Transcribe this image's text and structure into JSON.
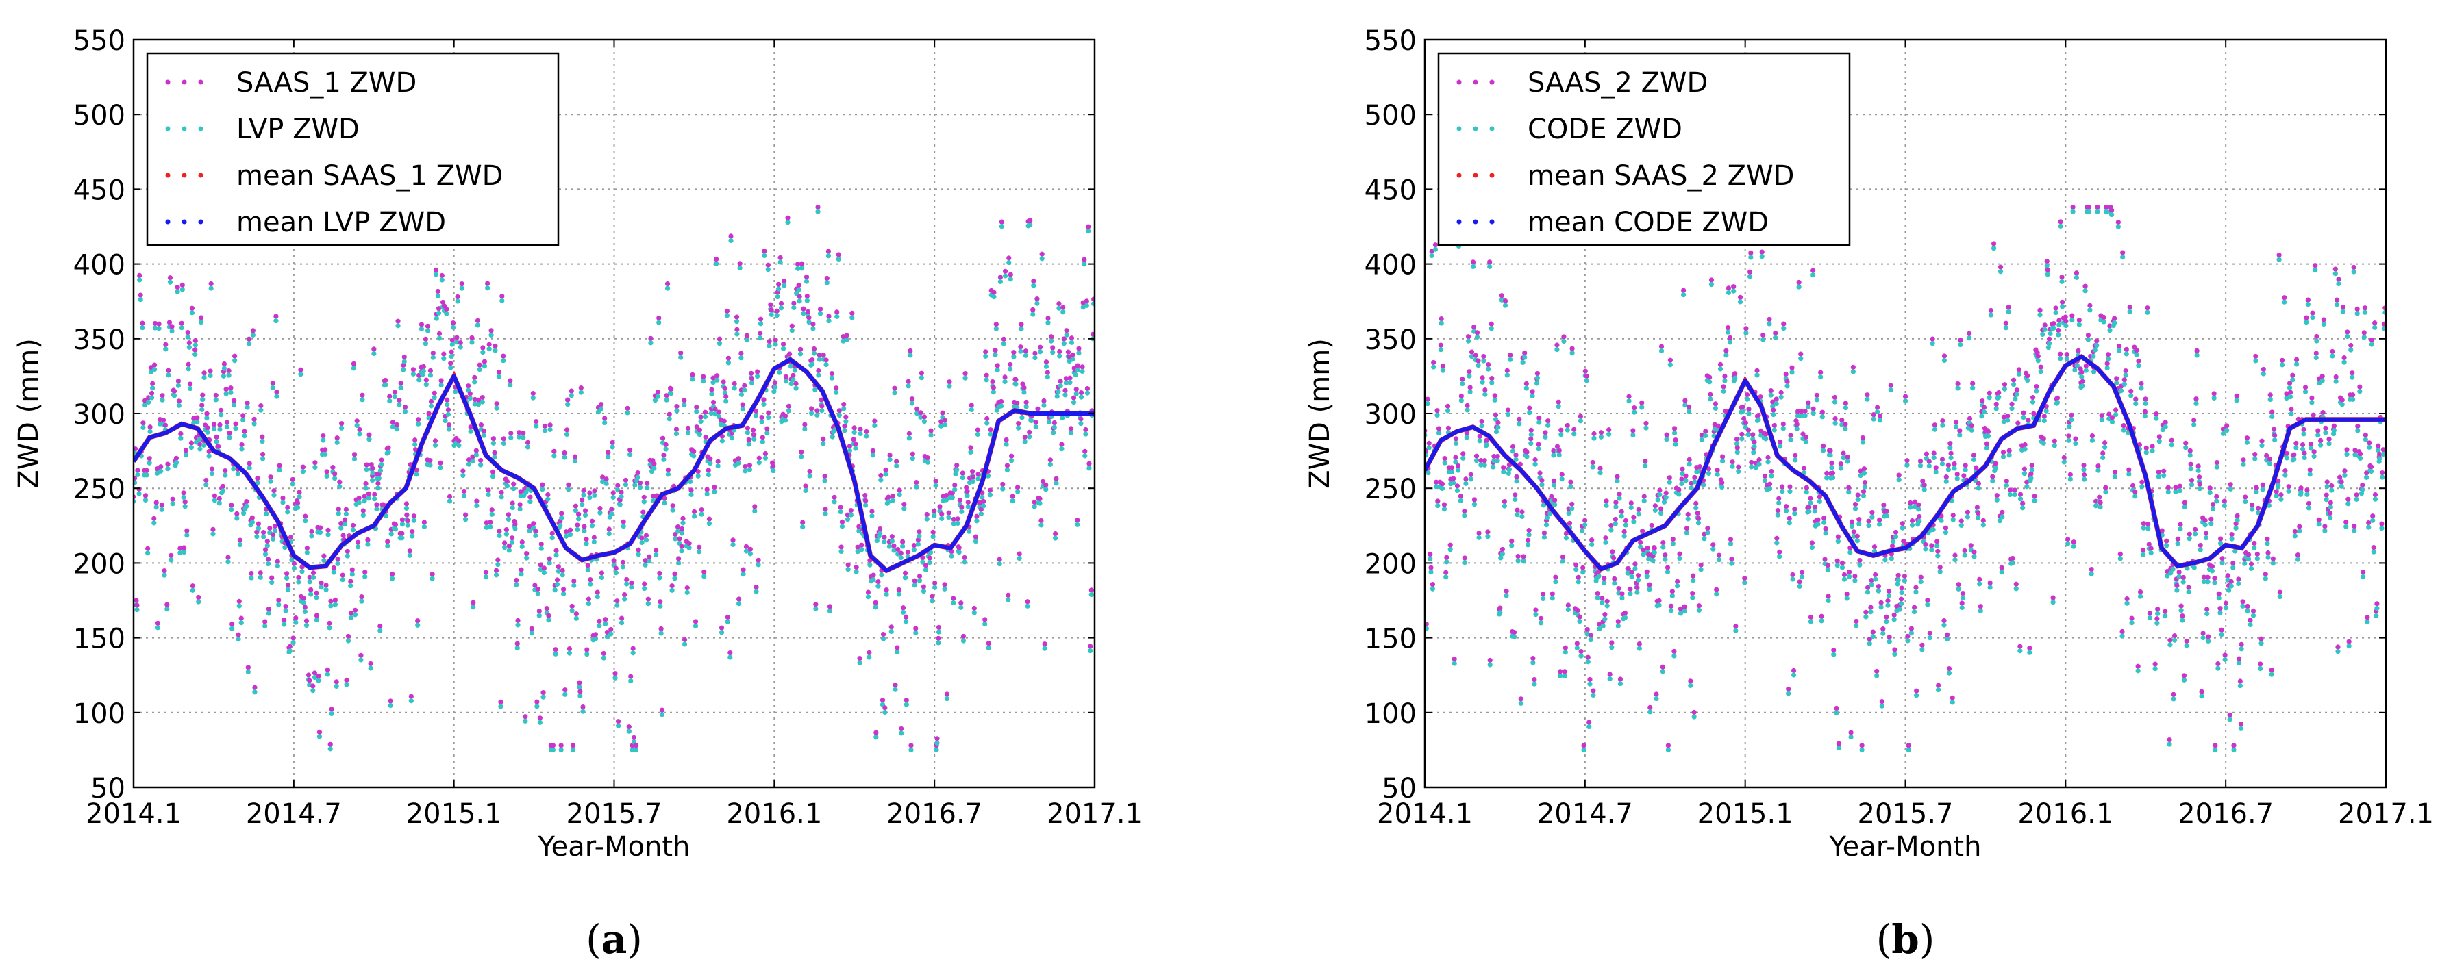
{
  "chart_data": [
    {
      "type": "scatter",
      "panel_label": "(a)",
      "xlabel": "Year-Month",
      "ylabel": "ZWD (mm)",
      "xlim": [
        2014.0,
        2017.0
      ],
      "ylim": [
        50,
        550
      ],
      "xticks": [
        {
          "v": 2014.0,
          "label": "2014.1"
        },
        {
          "v": 2014.5,
          "label": "2014.7"
        },
        {
          "v": 2015.0,
          "label": "2015.1"
        },
        {
          "v": 2015.5,
          "label": "2015.7"
        },
        {
          "v": 2016.0,
          "label": "2016.1"
        },
        {
          "v": 2016.5,
          "label": "2016.7"
        },
        {
          "v": 2017.0,
          "label": "2017.1"
        }
      ],
      "yticks": [
        50,
        100,
        150,
        200,
        250,
        300,
        350,
        400,
        450,
        500,
        550
      ],
      "grid": true,
      "legend_position": "top-left",
      "series": [
        {
          "name": "SAAS_1 ZWD",
          "color": "#cc33cc",
          "kind": "scatter",
          "offset": 3
        },
        {
          "name": "LVP ZWD",
          "color": "#33c4c4",
          "kind": "scatter",
          "offset": 0
        },
        {
          "name": "mean SAAS_1 ZWD",
          "color": "#ee2222",
          "kind": "mean",
          "offset": 0
        },
        {
          "name": "mean LVP ZWD",
          "color": "#1a1aee",
          "kind": "mean",
          "offset": 0
        }
      ],
      "mean_curve": {
        "x": [
          2014.0,
          2014.05,
          2014.1,
          2014.15,
          2014.2,
          2014.25,
          2014.3,
          2014.35,
          2014.4,
          2014.45,
          2014.5,
          2014.55,
          2014.6,
          2014.65,
          2014.7,
          2014.75,
          2014.8,
          2014.85,
          2014.9,
          2014.95,
          2015.0,
          2015.05,
          2015.1,
          2015.15,
          2015.2,
          2015.25,
          2015.3,
          2015.35,
          2015.4,
          2015.45,
          2015.5,
          2015.55,
          2015.6,
          2015.65,
          2015.7,
          2015.75,
          2015.8,
          2015.85,
          2015.9,
          2015.95,
          2016.0,
          2016.05,
          2016.1,
          2016.15,
          2016.2,
          2016.25,
          2016.3,
          2016.35,
          2016.4,
          2016.45,
          2016.5,
          2016.55,
          2016.6,
          2016.65,
          2016.7,
          2016.75,
          2016.8,
          2016.85,
          2016.9,
          2016.95,
          2017.0
        ],
        "y": [
          268,
          284,
          287,
          293,
          290,
          275,
          270,
          260,
          245,
          228,
          205,
          197,
          198,
          212,
          220,
          225,
          240,
          250,
          280,
          305,
          325,
          300,
          272,
          262,
          257,
          250,
          230,
          210,
          202,
          205,
          207,
          213,
          230,
          246,
          250,
          262,
          282,
          290,
          292,
          310,
          330,
          336,
          328,
          315,
          290,
          255,
          205,
          195,
          200,
          205,
          212,
          210,
          225,
          255,
          295,
          302,
          300,
          300,
          300,
          300,
          300
        ]
      },
      "seed": 11
    },
    {
      "type": "scatter",
      "panel_label": "(b)",
      "xlabel": "Year-Month",
      "ylabel": "ZWD (mm)",
      "xlim": [
        2014.0,
        2017.0
      ],
      "ylim": [
        50,
        550
      ],
      "xticks": [
        {
          "v": 2014.0,
          "label": "2014.1"
        },
        {
          "v": 2014.5,
          "label": "2014.7"
        },
        {
          "v": 2015.0,
          "label": "2015.1"
        },
        {
          "v": 2015.5,
          "label": "2015.7"
        },
        {
          "v": 2016.0,
          "label": "2016.1"
        },
        {
          "v": 2016.5,
          "label": "2016.7"
        },
        {
          "v": 2017.0,
          "label": "2017.1"
        }
      ],
      "yticks": [
        50,
        100,
        150,
        200,
        250,
        300,
        350,
        400,
        450,
        500,
        550
      ],
      "grid": true,
      "legend_position": "top-left",
      "series": [
        {
          "name": "SAAS_2 ZWD",
          "color": "#cc33cc",
          "kind": "scatter",
          "offset": 3
        },
        {
          "name": "CODE ZWD",
          "color": "#33c4c4",
          "kind": "scatter",
          "offset": 0
        },
        {
          "name": "mean SAAS_2 ZWD",
          "color": "#ee2222",
          "kind": "mean",
          "offset": 0
        },
        {
          "name": "mean CODE ZWD",
          "color": "#1a1aee",
          "kind": "mean",
          "offset": 0
        }
      ],
      "mean_curve": {
        "x": [
          2014.0,
          2014.05,
          2014.1,
          2014.15,
          2014.2,
          2014.25,
          2014.3,
          2014.35,
          2014.4,
          2014.45,
          2014.5,
          2014.55,
          2014.6,
          2014.65,
          2014.7,
          2014.75,
          2014.8,
          2014.85,
          2014.9,
          2014.95,
          2015.0,
          2015.05,
          2015.1,
          2015.15,
          2015.2,
          2015.25,
          2015.3,
          2015.35,
          2015.4,
          2015.45,
          2015.5,
          2015.55,
          2015.6,
          2015.65,
          2015.7,
          2015.75,
          2015.8,
          2015.85,
          2015.9,
          2015.95,
          2016.0,
          2016.05,
          2016.1,
          2016.15,
          2016.2,
          2016.25,
          2016.3,
          2016.35,
          2016.4,
          2016.45,
          2016.5,
          2016.55,
          2016.6,
          2016.65,
          2016.7,
          2016.75,
          2016.8,
          2016.85,
          2016.9,
          2016.95,
          2017.0
        ],
        "y": [
          262,
          282,
          288,
          291,
          285,
          272,
          262,
          250,
          235,
          222,
          208,
          196,
          200,
          215,
          220,
          225,
          238,
          250,
          278,
          300,
          322,
          305,
          272,
          262,
          255,
          245,
          225,
          208,
          205,
          208,
          210,
          218,
          232,
          248,
          255,
          265,
          283,
          290,
          292,
          315,
          332,
          338,
          330,
          318,
          292,
          258,
          210,
          198,
          200,
          203,
          212,
          210,
          225,
          255,
          290,
          296,
          296,
          296,
          296,
          296,
          296
        ]
      },
      "seed": 23
    }
  ]
}
